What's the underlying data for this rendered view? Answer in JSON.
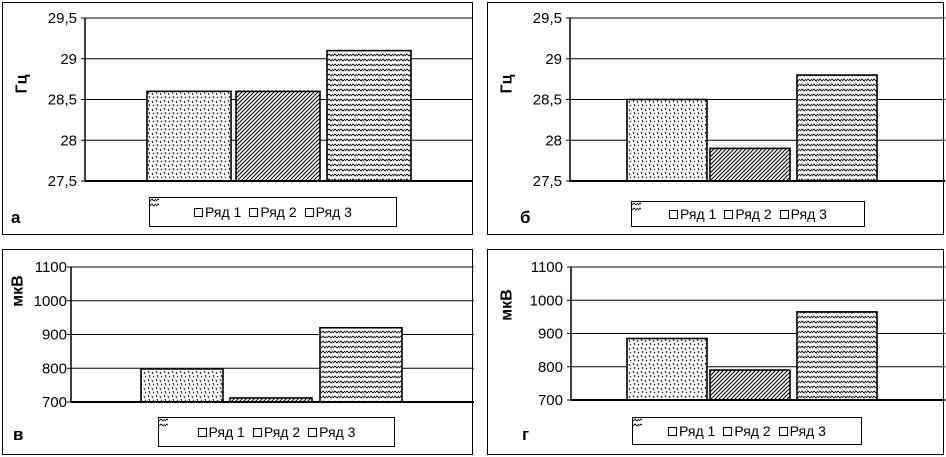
{
  "colors": {
    "axis": "#000000",
    "bar_fill": "#ffffff",
    "pattern": "#000000"
  },
  "chart_data": [
    {
      "panel_letter": "а",
      "type": "bar",
      "ylabel": "Гц",
      "ylim": [
        27.5,
        29.5
      ],
      "yticks": [
        "27,5",
        "28",
        "28,5",
        "29",
        "29,5"
      ],
      "ytick_values": [
        27.5,
        28,
        28.5,
        29,
        29.5
      ],
      "grid": true,
      "legend_position": "bottom",
      "series": [
        {
          "name": "Ряд 1",
          "values": [
            28.6
          ]
        },
        {
          "name": "Ряд 2",
          "values": [
            28.6
          ]
        },
        {
          "name": "Ряд 3",
          "values": [
            29.1
          ]
        }
      ]
    },
    {
      "panel_letter": "б",
      "type": "bar",
      "ylabel": "Гц",
      "ylim": [
        27.5,
        29.5
      ],
      "yticks": [
        "27,5",
        "28",
        "28,5",
        "29",
        "29,5"
      ],
      "ytick_values": [
        27.5,
        28,
        28.5,
        29,
        29.5
      ],
      "grid": true,
      "legend_position": "bottom",
      "series": [
        {
          "name": "Ряд 1",
          "values": [
            28.5
          ]
        },
        {
          "name": "Ряд 2",
          "values": [
            27.9
          ]
        },
        {
          "name": "Ряд 3",
          "values": [
            28.8
          ]
        }
      ]
    },
    {
      "panel_letter": "в",
      "type": "bar",
      "ylabel": "мкВ",
      "ylim": [
        700,
        1100
      ],
      "yticks": [
        "700",
        "800",
        "900",
        "1000",
        "1100"
      ],
      "ytick_values": [
        700,
        800,
        900,
        1000,
        1100
      ],
      "grid": true,
      "legend_position": "bottom",
      "series": [
        {
          "name": "Ряд 1",
          "values": [
            798
          ]
        },
        {
          "name": "Ряд 2",
          "values": [
            712
          ]
        },
        {
          "name": "Ряд 3",
          "values": [
            920
          ]
        }
      ]
    },
    {
      "panel_letter": "г",
      "type": "bar",
      "ylabel": "мкВ",
      "ylim": [
        700,
        1100
      ],
      "yticks": [
        "700",
        "800",
        "900",
        "1000",
        "1100"
      ],
      "ytick_values": [
        700,
        800,
        900,
        1000,
        1100
      ],
      "grid": true,
      "legend_position": "bottom",
      "series": [
        {
          "name": "Ряд 1",
          "values": [
            885
          ]
        },
        {
          "name": "Ряд 2",
          "values": [
            790
          ]
        },
        {
          "name": "Ряд 3",
          "values": [
            965
          ]
        }
      ]
    }
  ]
}
